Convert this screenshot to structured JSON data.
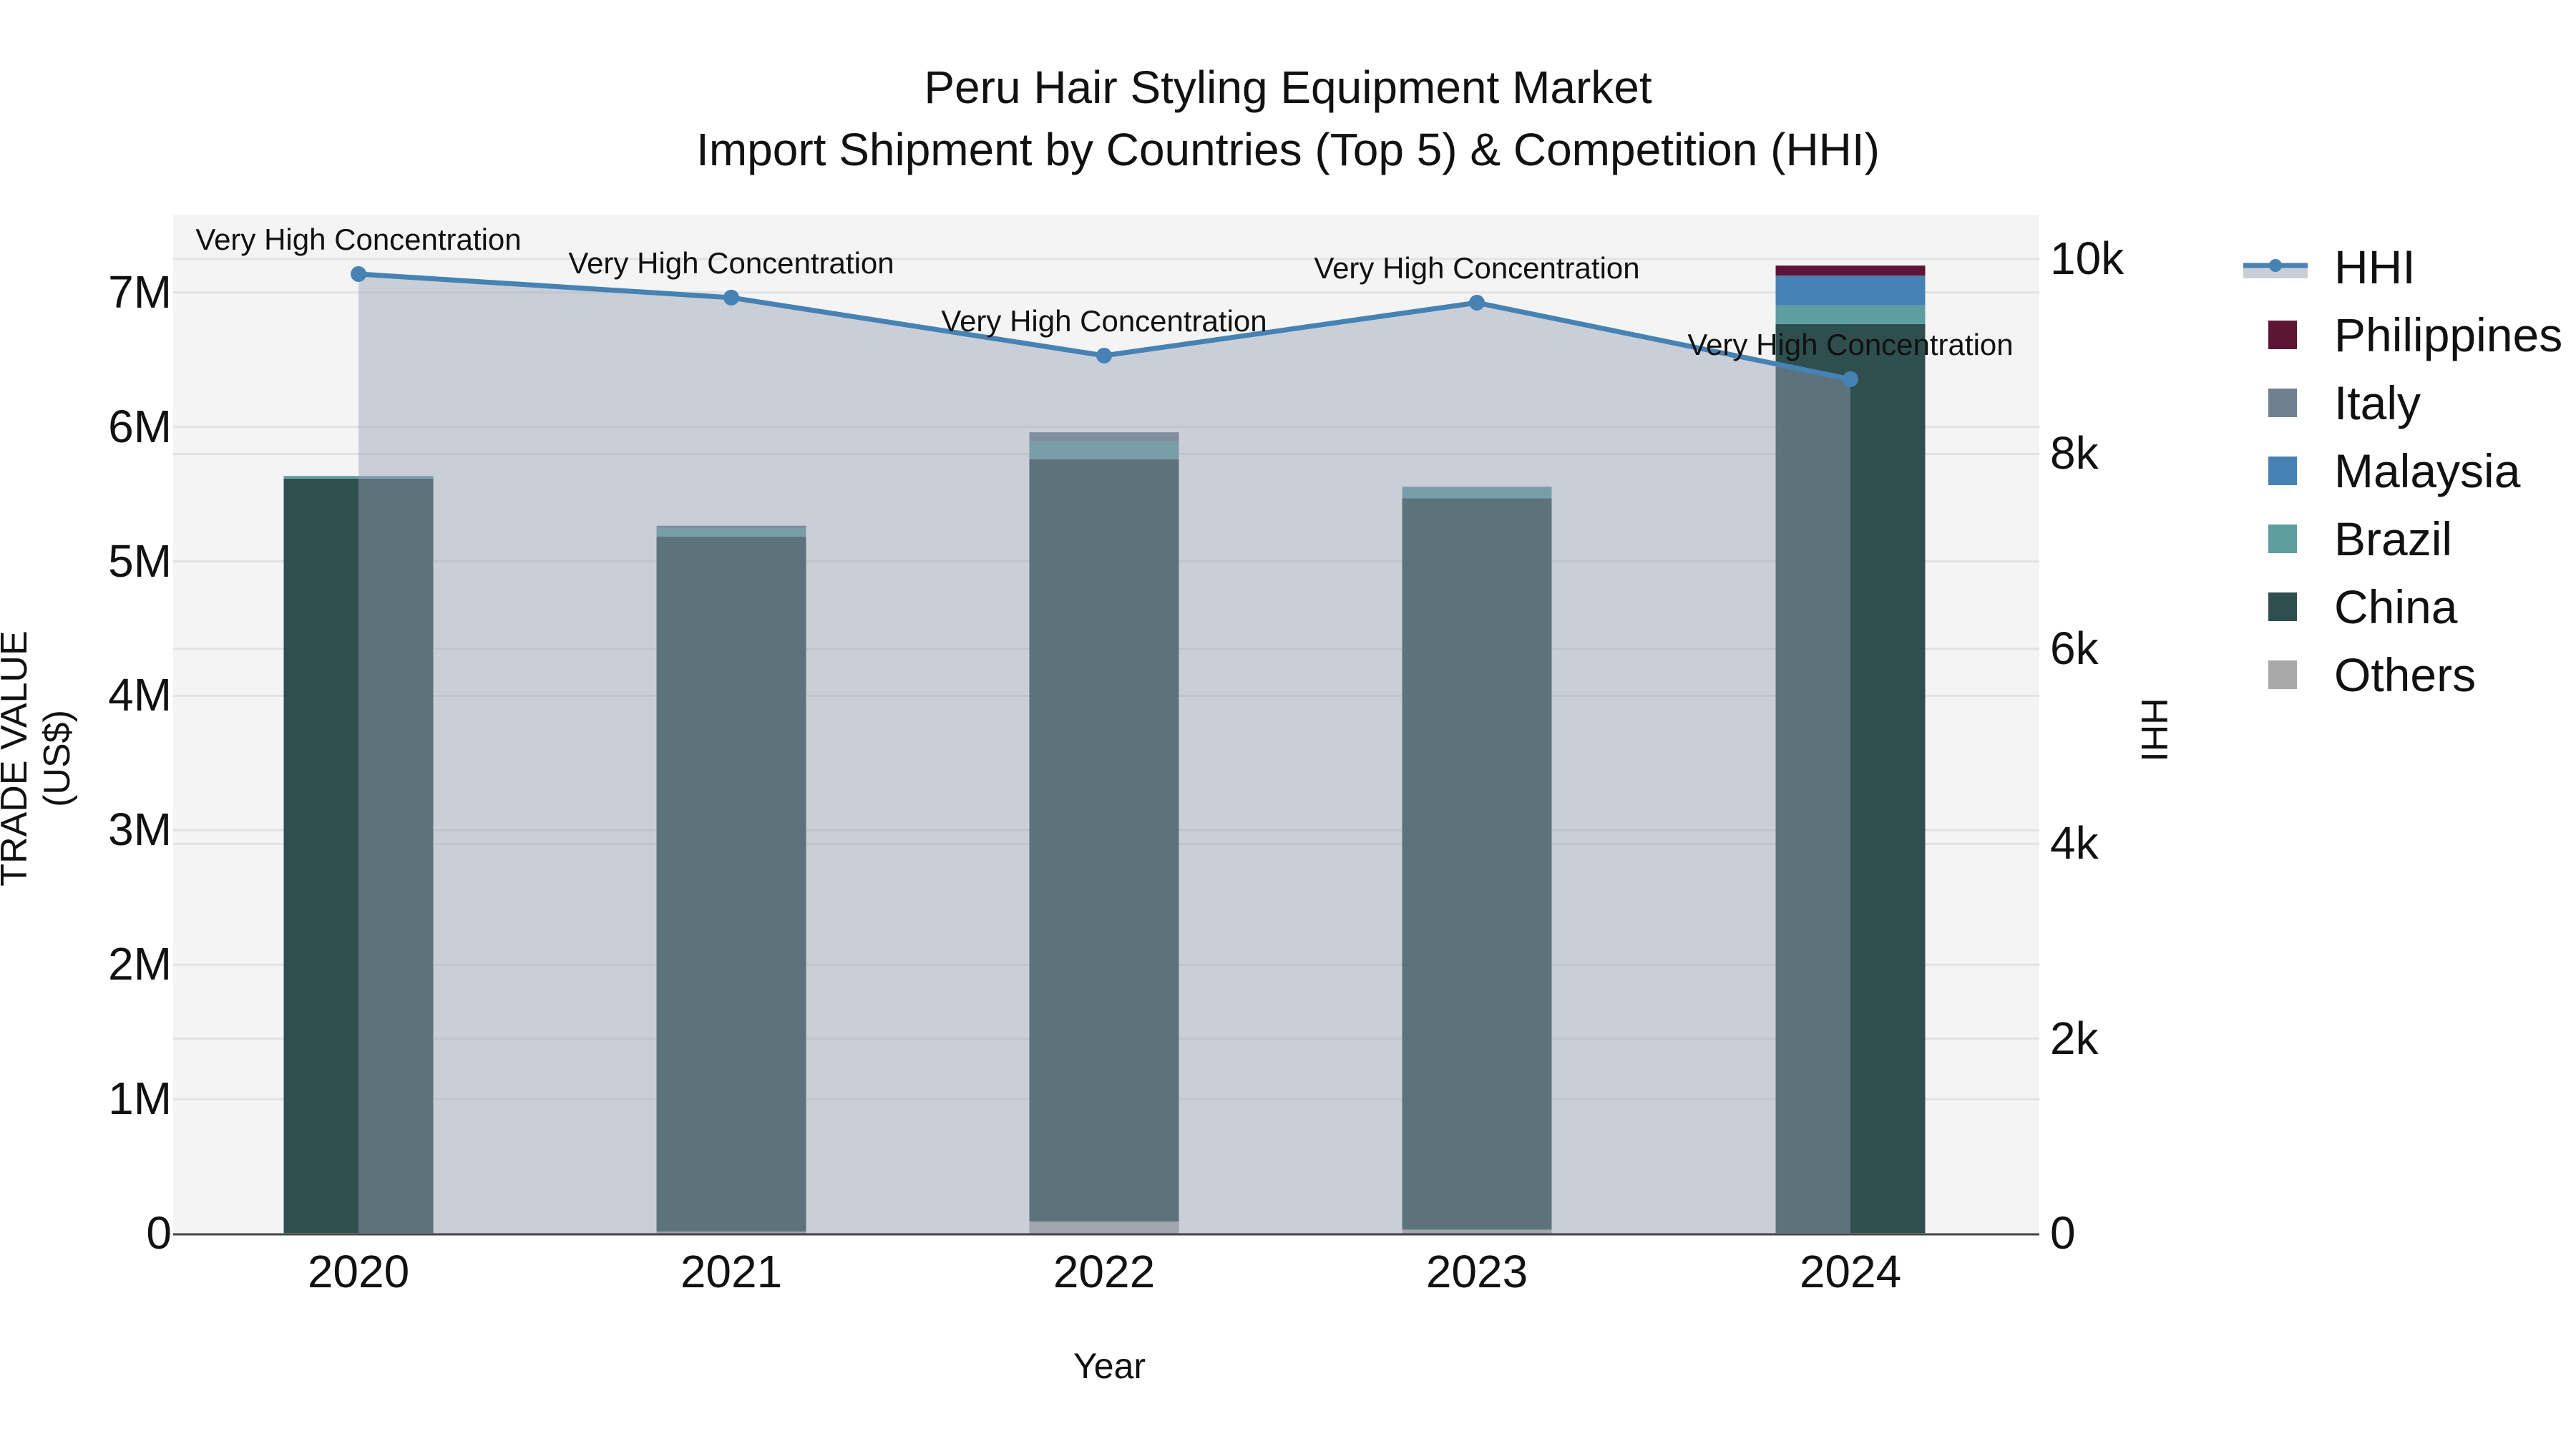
{
  "title": {
    "line1": "Peru Hair Styling Equipment Market",
    "line2": "Import Shipment by Countries (Top 5) & Competition (HHI)"
  },
  "axes": {
    "x_title": "Year",
    "y_left_title": "TRADE VALUE (US$)",
    "y_right_title": "HHI",
    "y_left_ticks": [
      "0",
      "1M",
      "2M",
      "3M",
      "4M",
      "5M",
      "6M",
      "7M"
    ],
    "y_right_ticks": [
      "0",
      "2k",
      "4k",
      "6k",
      "8k",
      "10k"
    ],
    "x_ticks": [
      "2020",
      "2021",
      "2022",
      "2023",
      "2024"
    ]
  },
  "legend": [
    {
      "label": "HHI",
      "type": "line",
      "color": "#4682b4"
    },
    {
      "label": "Philippines",
      "type": "bar",
      "color": "#5e1535"
    },
    {
      "label": "Italy",
      "type": "bar",
      "color": "#708090"
    },
    {
      "label": "Malaysia",
      "type": "bar",
      "color": "#4682b4"
    },
    {
      "label": "Brazil",
      "type": "bar",
      "color": "#5f9ea0"
    },
    {
      "label": "China",
      "type": "bar",
      "color": "#2f4f4f"
    },
    {
      "label": "Others",
      "type": "bar",
      "color": "#a9a9a9"
    }
  ],
  "annotations": [
    {
      "year": "2020",
      "text": "Very High Concentration"
    },
    {
      "year": "2021",
      "text": "Very High Concentration"
    },
    {
      "year": "2022",
      "text": "Very High Concentration"
    },
    {
      "year": "2023",
      "text": "Very High Concentration"
    },
    {
      "year": "2024",
      "text": "Very High Concentration"
    }
  ],
  "chart_data": {
    "type": "bar",
    "title": "Peru Hair Styling Equipment Market — Import Shipment by Countries (Top 5) & Competition (HHI)",
    "xlabel": "Year",
    "ylabel": "TRADE VALUE (US$)",
    "y2label": "HHI",
    "categories": [
      "2020",
      "2021",
      "2022",
      "2023",
      "2024"
    ],
    "stacked": true,
    "ylim": [
      0,
      7300000
    ],
    "y2lim": [
      0,
      10500
    ],
    "series": [
      {
        "name": "Others",
        "color": "#a9a9a9",
        "values": [
          5000,
          15000,
          90000,
          30000,
          5000
        ]
      },
      {
        "name": "China",
        "color": "#2f4f4f",
        "values": [
          5610000,
          5170000,
          5670000,
          5440000,
          6760000
        ]
      },
      {
        "name": "Brazil",
        "color": "#5f9ea0",
        "values": [
          20000,
          60000,
          130000,
          80000,
          140000
        ]
      },
      {
        "name": "Malaysia",
        "color": "#4682b4",
        "values": [
          0,
          0,
          0,
          0,
          220000
        ]
      },
      {
        "name": "Italy",
        "color": "#708090",
        "values": [
          0,
          20000,
          70000,
          5000,
          0
        ]
      },
      {
        "name": "Philippines",
        "color": "#5e1535",
        "values": [
          0,
          0,
          0,
          0,
          75000
        ]
      }
    ],
    "line_series": {
      "name": "HHI",
      "axis": "right",
      "color": "#4682b4",
      "fill": "tozeroy",
      "values": [
        9846,
        9604,
        9009,
        9552,
        8767
      ],
      "labels": [
        "Very High Concentration",
        "Very High Concentration",
        "Very High Concentration",
        "Very High Concentration",
        "Very High Concentration"
      ]
    },
    "grid": true,
    "legend_position": "right"
  }
}
